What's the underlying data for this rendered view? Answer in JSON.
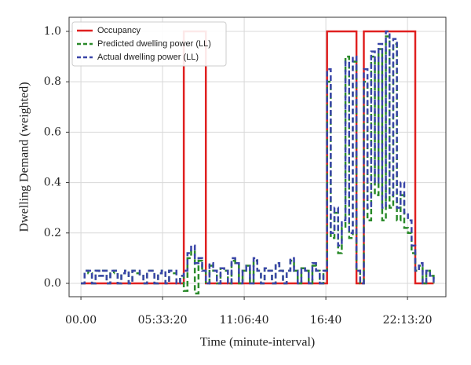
{
  "chart_data": {
    "type": "line",
    "xlabel": "Time (minute-interval)",
    "ylabel": "Dwelling Demand (weighted)",
    "drawstyle": "steps-post",
    "grid": true,
    "legend": "upper left",
    "xlim": [
      -2900,
      89400
    ],
    "ylim": [
      -0.053,
      1.056
    ],
    "xticks": [
      {
        "value": 0,
        "label": "00.00"
      },
      {
        "value": 20000,
        "label": "05:33:20"
      },
      {
        "value": 40000,
        "label": "11:06:40"
      },
      {
        "value": 60000,
        "label": "16:40"
      },
      {
        "value": 80000,
        "label": "22:13:20"
      }
    ],
    "yticks": [
      {
        "value": 0,
        "label": "0.0"
      },
      {
        "value": 0.2,
        "label": "0.2"
      },
      {
        "value": 0.4,
        "label": "0.4"
      },
      {
        "value": 0.6,
        "label": "0.6"
      },
      {
        "value": 0.8,
        "label": "0.8"
      },
      {
        "value": 1,
        "label": "1.0"
      }
    ],
    "x": [
      0,
      900,
      1800,
      2700,
      3600,
      4500,
      5400,
      6300,
      7200,
      8100,
      9000,
      9900,
      10800,
      11700,
      12600,
      13500,
      14400,
      15300,
      16200,
      17100,
      18000,
      18900,
      19800,
      20700,
      21600,
      22500,
      23400,
      24300,
      25200,
      26100,
      27000,
      27900,
      28800,
      29700,
      30600,
      31500,
      32400,
      33300,
      34200,
      35100,
      36000,
      36900,
      37800,
      38700,
      39600,
      40500,
      41400,
      42300,
      43200,
      44100,
      45000,
      45900,
      46800,
      47700,
      48600,
      49500,
      50400,
      51300,
      52200,
      53100,
      54000,
      54900,
      55800,
      56700,
      57600,
      58500,
      59400,
      60300,
      61200,
      62100,
      63000,
      63900,
      64800,
      65700,
      66600,
      67500,
      68400,
      69300,
      70200,
      71100,
      72000,
      72900,
      73800,
      74700,
      75600,
      76500,
      77400,
      78300,
      79200,
      80100,
      81000,
      81900,
      82800,
      83700,
      84600,
      85500,
      86400
    ],
    "series": [
      {
        "name": "Occupancy",
        "color": "#e02020",
        "dash": "none",
        "values": [
          0,
          0,
          0,
          0,
          0,
          0,
          0,
          0,
          0,
          0,
          0,
          0,
          0,
          0,
          0,
          0,
          0,
          0,
          0,
          0,
          0,
          0,
          0,
          0,
          0,
          0,
          0,
          0,
          1,
          1,
          1,
          1,
          1,
          1,
          0,
          0,
          0,
          0,
          0,
          0,
          0,
          0,
          0,
          0,
          0,
          0,
          0,
          0,
          0,
          0,
          0,
          0,
          0,
          0,
          0,
          0,
          0,
          0,
          0,
          0,
          0,
          0,
          0,
          0,
          0,
          0,
          0,
          1,
          1,
          1,
          1,
          1,
          1,
          1,
          1,
          0,
          0,
          1,
          1,
          1,
          1,
          1,
          1,
          1,
          1,
          1,
          1,
          1,
          1,
          1,
          1,
          0,
          0,
          0,
          0,
          0,
          0
        ]
      },
      {
        "name": "Predicted dwelling power (LL)",
        "color": "#2a8a2a",
        "dash": "7 4",
        "values": [
          0,
          0.05,
          0.04,
          0,
          0.05,
          0.03,
          0.05,
          0,
          0.04,
          0.05,
          0,
          0.04,
          0.05,
          0,
          0.05,
          0.04,
          0.03,
          0,
          0.05,
          0.05,
          0,
          0.04,
          0.05,
          0,
          0.05,
          0.04,
          0,
          0.03,
          -0.03,
          0.1,
          0.13,
          -0.04,
          0.09,
          0.05,
          0,
          0.07,
          0.05,
          0,
          0.06,
          0.05,
          0,
          0.09,
          0.08,
          0,
          0.05,
          0.07,
          0,
          0.09,
          0.05,
          0,
          0.06,
          0.05,
          0,
          0.08,
          0.05,
          0,
          0.05,
          0.09,
          0.05,
          0,
          0.06,
          0.05,
          0,
          0.07,
          0.05,
          0,
          0.05,
          0.8,
          0.18,
          0.28,
          0.12,
          0.22,
          0.9,
          0.18,
          0.88,
          0.05,
          0,
          0.8,
          0.25,
          0.9,
          0.35,
          0.93,
          0.25,
          0.98,
          0.3,
          0.95,
          0.25,
          0.35,
          0.22,
          0.2,
          0.12,
          0.05,
          0.07,
          0,
          0.05,
          0.03,
          0
        ]
      },
      {
        "name": "Actual dwelling power (LL)",
        "color": "#3a46a8",
        "dash": "7 4",
        "values": [
          0,
          0.05,
          0.05,
          0,
          0.05,
          0.03,
          0.05,
          0,
          0.05,
          0.05,
          0,
          0.04,
          0.05,
          0,
          0.05,
          0.05,
          0.03,
          0,
          0.05,
          0.05,
          0,
          0.04,
          0.05,
          0,
          0.05,
          0.05,
          0,
          0.03,
          0.05,
          0.12,
          0.15,
          0.08,
          0.1,
          0.05,
          0,
          0.08,
          0.05,
          0,
          0.06,
          0.05,
          0,
          0.1,
          0.08,
          0,
          0.05,
          0.07,
          0,
          0.1,
          0.05,
          0,
          0.06,
          0.05,
          0,
          0.08,
          0.05,
          0,
          0.05,
          0.1,
          0.05,
          0,
          0.06,
          0.05,
          0,
          0.08,
          0.05,
          0,
          0.05,
          0.85,
          0.2,
          0.3,
          0.15,
          0.25,
          0.88,
          0.2,
          0.9,
          0.05,
          0,
          0.85,
          0.3,
          0.92,
          0.4,
          0.95,
          0.3,
          1.0,
          0.35,
          0.97,
          0.3,
          0.4,
          0.28,
          0.25,
          0.15,
          0.05,
          0.08,
          0,
          0.05,
          0.03,
          0
        ]
      }
    ]
  }
}
